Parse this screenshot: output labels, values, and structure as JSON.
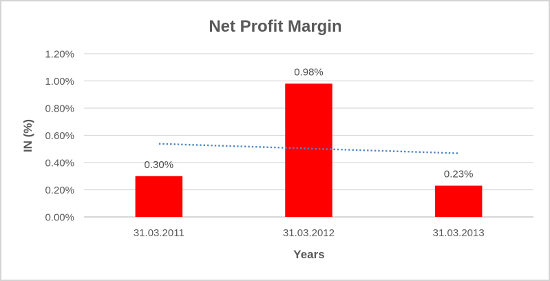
{
  "frame": {
    "background": "#ffffff",
    "border_color": "#d4d4d4"
  },
  "chart_data": {
    "type": "bar",
    "title": "Net Profit Margin",
    "xlabel": "Years",
    "ylabel": "IN (%)",
    "categories": [
      "31.03.2011",
      "31.03.2012",
      "31.03.2013"
    ],
    "values": [
      0.3,
      0.98,
      0.23
    ],
    "data_labels": [
      "0.30%",
      "0.98%",
      "0.23%"
    ],
    "unit": "percent",
    "ylim": [
      0,
      1.2
    ],
    "ytick_step": 0.2,
    "ytick_labels": [
      "0.00%",
      "0.20%",
      "0.40%",
      "0.60%",
      "0.80%",
      "1.00%",
      "1.20%"
    ],
    "grid": true,
    "legend": "none",
    "bar_color": "#ff0000",
    "gridline_color": "#d9d9d9",
    "axisline_color": "#bfbfbf",
    "text_color": "#595959",
    "trendline": {
      "type": "linear",
      "style": "dotted",
      "color": "#4f87c5",
      "values_at_categories": [
        0.538,
        0.503,
        0.468
      ]
    }
  }
}
